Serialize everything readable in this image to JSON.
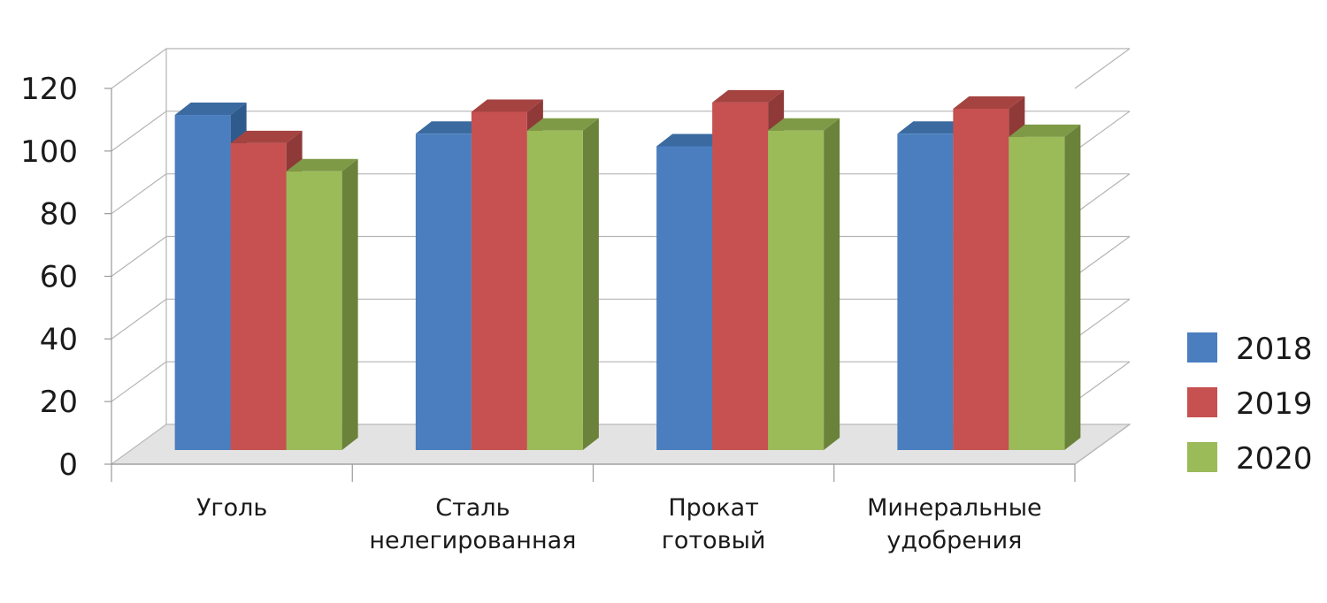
{
  "chart_data": {
    "type": "bar",
    "categories": [
      [
        "Уголь"
      ],
      [
        "Сталь",
        "нелегированная"
      ],
      [
        "Прокат",
        "готовый"
      ],
      [
        "Минеральные",
        "удобрения"
      ]
    ],
    "series": [
      {
        "name": "2018",
        "values": [
          107,
          101,
          97,
          101
        ],
        "color": "#4a7ebf",
        "top_color": "#3a6aa0",
        "side_color": "#2f5a8c"
      },
      {
        "name": "2019",
        "values": [
          98,
          108,
          111,
          109
        ],
        "color": "#c65150",
        "top_color": "#a54341",
        "side_color": "#8f3a38"
      },
      {
        "name": "2020",
        "values": [
          89,
          102,
          102,
          100
        ],
        "color": "#9bbb59",
        "top_color": "#7e9a46",
        "side_color": "#6a823a"
      }
    ],
    "yticks": [
      0,
      20,
      40,
      60,
      80,
      100,
      120
    ],
    "ylim": [
      0,
      120
    ],
    "grid": true,
    "legend": "right",
    "style": "3d-clustered-column"
  }
}
